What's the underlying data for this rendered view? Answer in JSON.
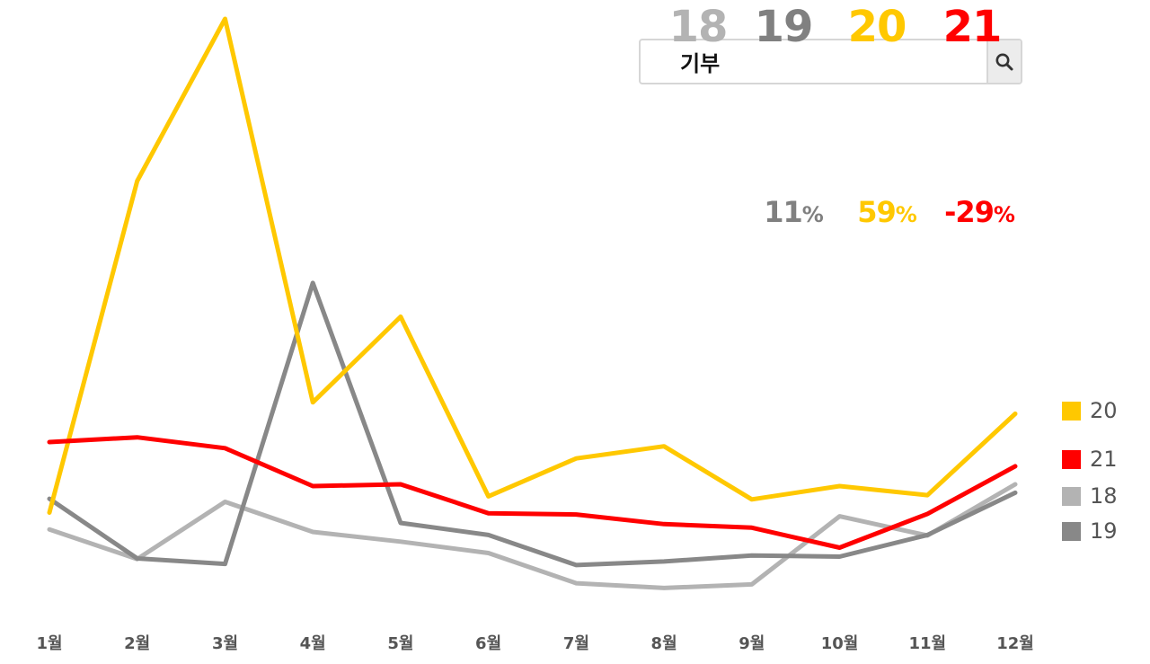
{
  "search": {
    "value": "기부"
  },
  "summary": {
    "years": [
      {
        "label": "18",
        "color": "#b3b3b3"
      },
      {
        "label": "19",
        "color": "#808080"
      },
      {
        "label": "20",
        "color": "#ffc800"
      },
      {
        "label": "21",
        "color": "#ff0000"
      }
    ],
    "changes": [
      {
        "value": "11",
        "unit": "%",
        "color": "#808080"
      },
      {
        "value": "59",
        "unit": "%",
        "color": "#ffc800"
      },
      {
        "value": "-29",
        "unit": "%",
        "color": "#ff0000"
      }
    ]
  },
  "legend": [
    {
      "label": "20",
      "color": "#ffc800"
    },
    {
      "label": "21",
      "color": "#ff0000"
    },
    {
      "label": "18",
      "color": "#b3b3b3"
    },
    {
      "label": "19",
      "color": "#888888"
    }
  ],
  "chart_data": {
    "type": "line",
    "categories": [
      "1월",
      "2월",
      "3월",
      "4월",
      "5월",
      "6월",
      "7월",
      "8월",
      "9월",
      "10월",
      "11월",
      "12월"
    ],
    "ylim": [
      0,
      100
    ],
    "grid": false,
    "legend_position": "right",
    "series": [
      {
        "name": "18",
        "color": "#b3b3b3",
        "values": [
          15.3,
          10.4,
          19.9,
          14.9,
          13.3,
          11.4,
          6.4,
          5.6,
          6.2,
          17.5,
          14.3,
          22.8
        ]
      },
      {
        "name": "19",
        "color": "#888888",
        "values": [
          20.4,
          10.5,
          9.6,
          56.2,
          16.4,
          14.4,
          9.4,
          10.0,
          11.0,
          10.8,
          14.4,
          21.4
        ]
      },
      {
        "name": "20",
        "color": "#ffc800",
        "values": [
          18.1,
          73.1,
          100,
          36.4,
          50.6,
          20.8,
          27.1,
          29.1,
          20.3,
          22.5,
          21.0,
          34.5
        ]
      },
      {
        "name": "21",
        "color": "#ff0000",
        "values": [
          29.8,
          30.6,
          28.8,
          22.5,
          22.8,
          18.0,
          17.8,
          16.2,
          15.6,
          12.3,
          17.9,
          25.8
        ]
      }
    ]
  }
}
